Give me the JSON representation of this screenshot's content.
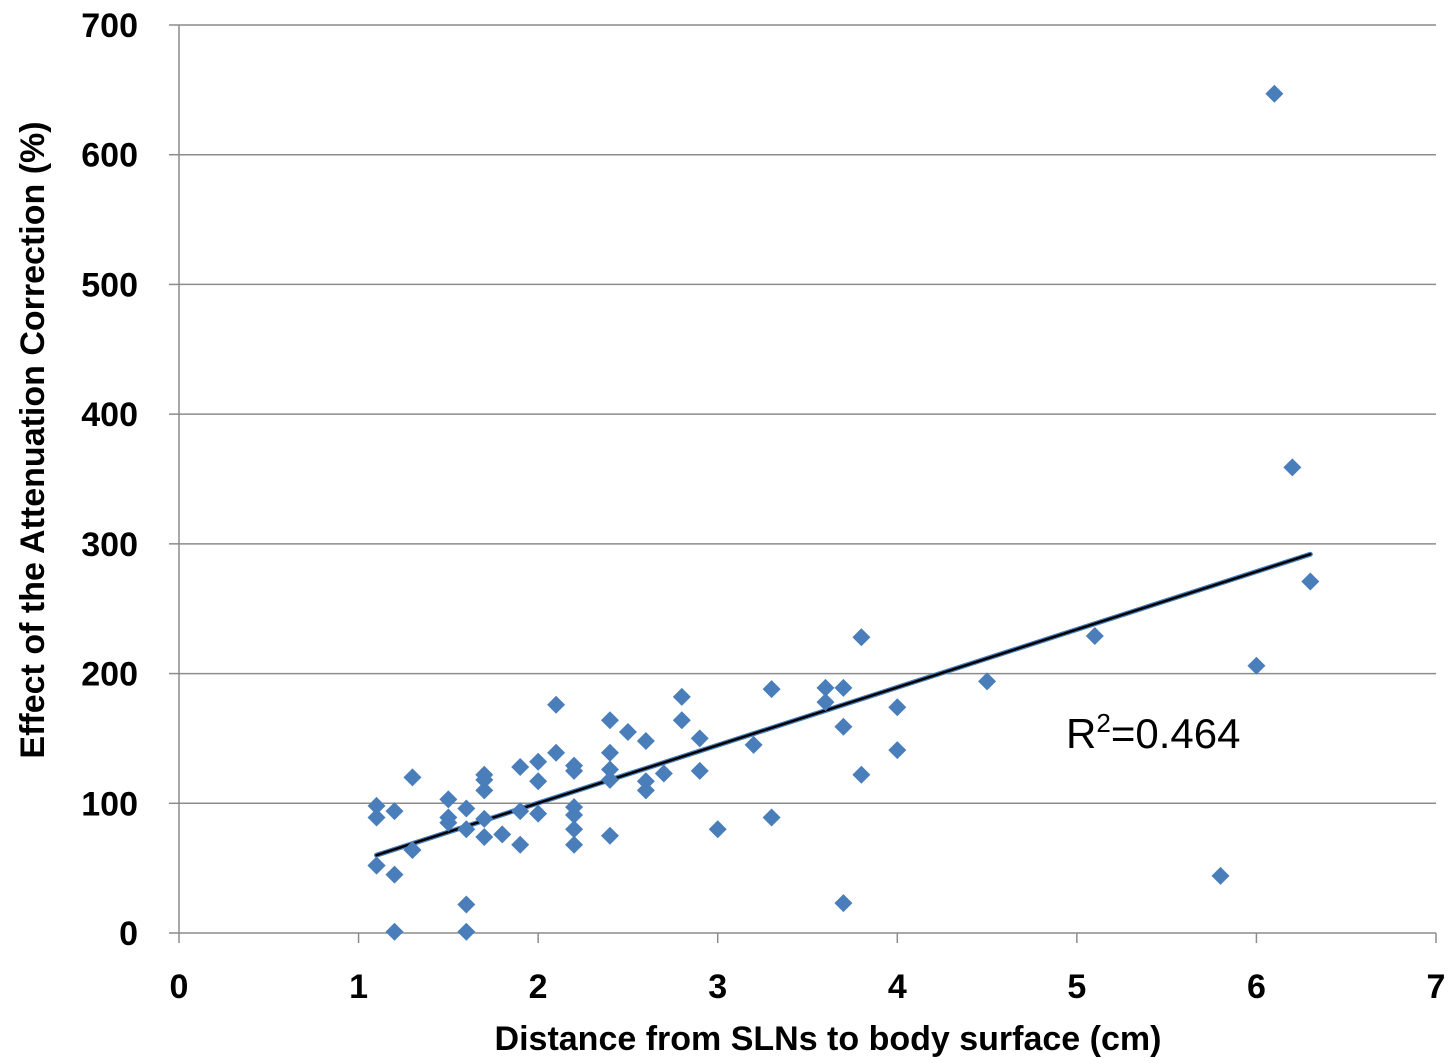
{
  "chart_data": {
    "type": "scatter",
    "title": "",
    "xlabel": "Distance from SLNs to body surface (cm)",
    "ylabel": "Effect of the Attenuation Correction (%)",
    "xlim": [
      0,
      7
    ],
    "ylim": [
      0,
      700
    ],
    "xticks": [
      0,
      1,
      2,
      3,
      4,
      5,
      6,
      7
    ],
    "yticks": [
      0,
      100,
      200,
      300,
      400,
      500,
      600,
      700
    ],
    "grid": "horizontal",
    "legend": "none",
    "marker_color": "#4a7ebb",
    "trendline_color": "#000000",
    "trendline": {
      "x": [
        1.1,
        6.3
      ],
      "y": [
        60,
        292
      ]
    },
    "annotation": {
      "base": "R",
      "sup": "2",
      "rest": "=0.464",
      "x": 5.5,
      "y": 155
    },
    "series": [
      {
        "points": [
          [
            1.1,
            98
          ],
          [
            1.1,
            89
          ],
          [
            1.1,
            52
          ],
          [
            1.1,
            52
          ],
          [
            1.2,
            94
          ],
          [
            1.2,
            45
          ],
          [
            1.2,
            1
          ],
          [
            1.3,
            120
          ],
          [
            1.3,
            64
          ],
          [
            1.5,
            103
          ],
          [
            1.5,
            89
          ],
          [
            1.5,
            85
          ],
          [
            1.6,
            96
          ],
          [
            1.6,
            80
          ],
          [
            1.6,
            22
          ],
          [
            1.6,
            1
          ],
          [
            1.7,
            122
          ],
          [
            1.7,
            118
          ],
          [
            1.7,
            110
          ],
          [
            1.7,
            88
          ],
          [
            1.7,
            74
          ],
          [
            1.8,
            76
          ],
          [
            1.9,
            128
          ],
          [
            1.9,
            94
          ],
          [
            1.9,
            68
          ],
          [
            2.0,
            132
          ],
          [
            2.0,
            117
          ],
          [
            2.0,
            92
          ],
          [
            2.1,
            176
          ],
          [
            2.1,
            139
          ],
          [
            2.2,
            129
          ],
          [
            2.2,
            125
          ],
          [
            2.2,
            97
          ],
          [
            2.2,
            91
          ],
          [
            2.2,
            80
          ],
          [
            2.2,
            68
          ],
          [
            2.4,
            164
          ],
          [
            2.4,
            139
          ],
          [
            2.4,
            126
          ],
          [
            2.4,
            118
          ],
          [
            2.4,
            75
          ],
          [
            2.5,
            155
          ],
          [
            2.6,
            148
          ],
          [
            2.6,
            117
          ],
          [
            2.6,
            110
          ],
          [
            2.7,
            123
          ],
          [
            2.8,
            182
          ],
          [
            2.8,
            164
          ],
          [
            2.9,
            150
          ],
          [
            2.9,
            125
          ],
          [
            3.0,
            80
          ],
          [
            3.2,
            145
          ],
          [
            3.3,
            188
          ],
          [
            3.3,
            89
          ],
          [
            3.6,
            189
          ],
          [
            3.6,
            178
          ],
          [
            3.7,
            189
          ],
          [
            3.7,
            159
          ],
          [
            3.7,
            23
          ],
          [
            3.8,
            228
          ],
          [
            3.8,
            122
          ],
          [
            4.0,
            174
          ],
          [
            4.0,
            141
          ],
          [
            4.5,
            194
          ],
          [
            5.1,
            229
          ],
          [
            5.8,
            44
          ],
          [
            6.0,
            206
          ],
          [
            6.1,
            647
          ],
          [
            6.2,
            359
          ],
          [
            6.3,
            271
          ]
        ]
      }
    ]
  }
}
